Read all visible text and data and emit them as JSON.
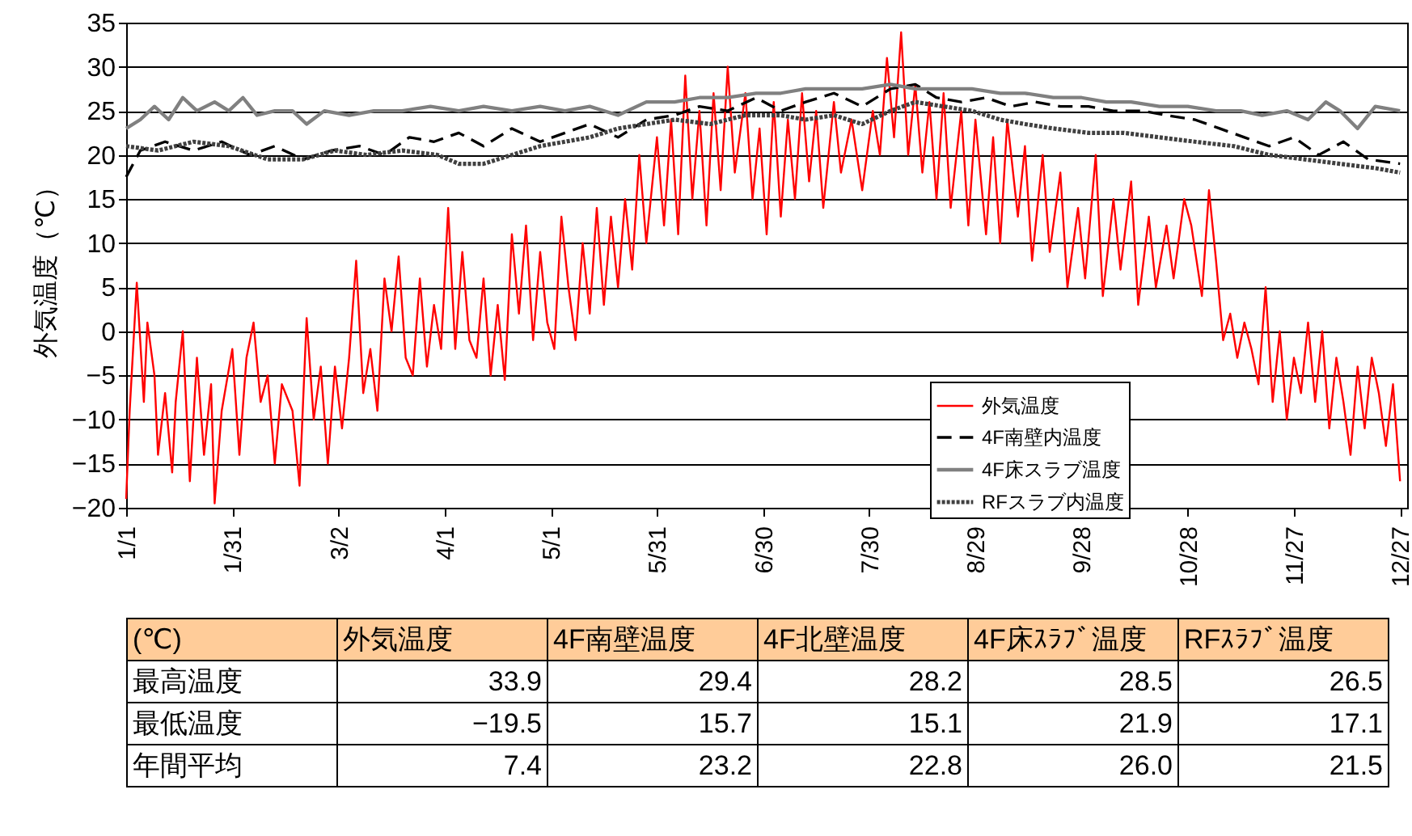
{
  "chart_data": {
    "type": "line",
    "ylabel": "外気温度（℃）",
    "ylim": [
      -20,
      35
    ],
    "yticks": [
      -20,
      -15,
      -10,
      -5,
      0,
      5,
      10,
      15,
      20,
      25,
      30,
      35
    ],
    "xlim": [
      "--01-01",
      "--12-29"
    ],
    "xticks": [
      {
        "value": "--01-01",
        "label": "1/1"
      },
      {
        "value": "--01-31",
        "label": "1/31"
      },
      {
        "value": "--03-02",
        "label": "3/2"
      },
      {
        "value": "--04-01",
        "label": "4/1"
      },
      {
        "value": "--05-01",
        "label": "5/1"
      },
      {
        "value": "--05-31",
        "label": "5/31"
      },
      {
        "value": "--06-30",
        "label": "6/30"
      },
      {
        "value": "--07-30",
        "label": "7/30"
      },
      {
        "value": "--08-29",
        "label": "8/29"
      },
      {
        "value": "--09-28",
        "label": "9/28"
      },
      {
        "value": "--10-28",
        "label": "10/28"
      },
      {
        "value": "--11-27",
        "label": "11/27"
      },
      {
        "value": "--12-27",
        "label": "12/27"
      }
    ],
    "grid": "y",
    "legend": "bottom right",
    "series": [
      {
        "name": "外気温度",
        "color": "#ff0000",
        "line_style": "solid",
        "x": [
          "--01-01",
          "--01-02",
          "--01-04",
          "--01-06",
          "--01-07",
          "--01-09",
          "--01-10",
          "--01-12",
          "--01-14",
          "--01-15",
          "--01-17",
          "--01-19",
          "--01-21",
          "--01-23",
          "--01-25",
          "--01-26",
          "--01-28",
          "--01-31",
          "--02-02",
          "--02-04",
          "--02-06",
          "--02-08",
          "--02-10",
          "--02-12",
          "--02-14",
          "--02-17",
          "--02-19",
          "--02-21",
          "--02-23",
          "--02-25",
          "--02-27",
          "--03-01",
          "--03-03",
          "--03-05",
          "--03-07",
          "--03-09",
          "--03-11",
          "--03-13",
          "--03-15",
          "--03-17",
          "--03-19",
          "--03-21",
          "--03-23",
          "--03-25",
          "--03-27",
          "--03-29",
          "--03-31",
          "--04-02",
          "--04-04",
          "--04-06",
          "--04-08",
          "--04-10",
          "--04-12",
          "--04-14",
          "--04-16",
          "--04-18",
          "--04-20",
          "--04-22",
          "--04-24",
          "--04-26",
          "--04-28",
          "--04-30",
          "--05-02",
          "--05-04",
          "--05-06",
          "--05-08",
          "--05-10",
          "--05-12",
          "--05-14",
          "--05-16",
          "--05-18",
          "--05-20",
          "--05-22",
          "--05-24",
          "--05-26",
          "--05-28",
          "--05-31",
          "--06-02",
          "--06-04",
          "--06-06",
          "--06-08",
          "--06-10",
          "--06-12",
          "--06-14",
          "--06-16",
          "--06-18",
          "--06-20",
          "--06-22",
          "--06-25",
          "--06-27",
          "--06-29",
          "--07-01",
          "--07-03",
          "--07-05",
          "--07-07",
          "--07-09",
          "--07-11",
          "--07-13",
          "--07-15",
          "--07-17",
          "--07-20",
          "--07-22",
          "--07-25",
          "--07-28",
          "--07-31",
          "--08-02",
          "--08-04",
          "--08-06",
          "--08-08",
          "--08-10",
          "--08-12",
          "--08-14",
          "--08-16",
          "--08-18",
          "--08-20",
          "--08-22",
          "--08-25",
          "--08-27",
          "--08-29",
          "--09-01",
          "--09-03",
          "--09-05",
          "--09-07",
          "--09-10",
          "--09-12",
          "--09-14",
          "--09-17",
          "--09-19",
          "--09-22",
          "--09-24",
          "--09-27",
          "--09-29",
          "--10-02",
          "--10-04",
          "--10-07",
          "--10-09",
          "--10-12",
          "--10-14",
          "--10-17",
          "--10-19",
          "--10-22",
          "--10-24",
          "--10-27",
          "--10-29",
          "--11-01",
          "--11-03",
          "--11-05",
          "--11-07",
          "--11-09",
          "--11-11",
          "--11-13",
          "--11-15",
          "--11-17",
          "--11-19",
          "--11-21",
          "--11-23",
          "--11-25",
          "--11-27",
          "--11-29",
          "--12-01",
          "--12-03",
          "--12-05",
          "--12-07",
          "--12-09",
          "--12-11",
          "--12-13",
          "--12-15",
          "--12-17",
          "--12-19",
          "--12-21",
          "--12-23",
          "--12-25",
          "--12-27"
        ],
        "values": [
          -19,
          -9,
          5.5,
          -8,
          1,
          -5,
          -14,
          -7,
          -16,
          -8,
          0,
          -17,
          -3,
          -14,
          -6,
          -19.5,
          -9,
          -2,
          -14,
          -3,
          1,
          -8,
          -5,
          -15,
          -6,
          -9,
          -17.5,
          1.5,
          -10,
          -4,
          -15,
          -4,
          -11,
          -3,
          8,
          -7,
          -2,
          -9,
          6,
          0,
          8.5,
          -3,
          -5,
          6,
          -4,
          3,
          -2,
          14,
          -2,
          9,
          -1,
          -3,
          6,
          -5,
          3,
          -5.5,
          11,
          2,
          12,
          -1,
          9,
          1,
          -2,
          13,
          5,
          -1,
          10,
          2,
          14,
          3,
          13,
          5,
          15,
          7,
          20,
          10,
          22,
          12,
          24,
          11,
          29,
          15,
          25,
          12,
          27,
          16,
          30,
          18,
          27,
          15,
          23,
          11,
          26,
          13,
          24,
          15,
          27,
          17,
          25,
          14,
          26,
          18,
          24,
          16,
          25,
          20,
          31,
          22,
          33.9,
          20,
          28,
          18,
          26,
          15,
          27,
          14,
          25,
          12,
          24,
          11,
          22,
          10,
          24,
          13,
          21,
          8,
          20,
          9,
          18,
          5,
          14,
          6,
          20,
          4,
          15,
          7,
          17,
          3,
          13,
          5,
          12,
          6,
          15,
          12,
          4,
          16,
          8,
          -1,
          2,
          -3,
          1,
          -2,
          -6,
          5,
          -8,
          0,
          -10,
          -3,
          -7,
          1,
          -8,
          0,
          -11,
          -3,
          -8,
          -14,
          -4,
          -11,
          -3,
          -7,
          -13,
          -6,
          -17
        ]
      },
      {
        "name": "4F南壁内温度",
        "color": "#000000",
        "line_style": "dashed",
        "x": [
          "--01-01",
          "--01-05",
          "--01-12",
          "--01-20",
          "--01-28",
          "--02-05",
          "--02-12",
          "--02-20",
          "--02-28",
          "--03-08",
          "--03-15",
          "--03-22",
          "--03-29",
          "--04-05",
          "--04-12",
          "--04-20",
          "--04-28",
          "--05-05",
          "--05-12",
          "--05-20",
          "--05-28",
          "--06-05",
          "--06-12",
          "--06-20",
          "--06-28",
          "--07-05",
          "--07-12",
          "--07-20",
          "--07-28",
          "--08-05",
          "--08-12",
          "--08-18",
          "--08-25",
          "--09-01",
          "--09-08",
          "--09-15",
          "--09-22",
          "--09-30",
          "--10-07",
          "--10-15",
          "--10-22",
          "--10-30",
          "--11-06",
          "--11-13",
          "--11-20",
          "--11-27",
          "--12-04",
          "--12-11",
          "--12-18",
          "--12-27"
        ],
        "values": [
          17.5,
          20.5,
          21.5,
          20.5,
          21.5,
          20,
          21,
          19.5,
          20.5,
          21,
          20,
          22,
          21.5,
          22.5,
          21,
          23,
          21.5,
          22.5,
          23.5,
          22,
          24,
          24.5,
          25.5,
          25,
          26.5,
          25,
          26,
          27,
          25.5,
          27.5,
          28,
          26.5,
          26,
          26.5,
          25.5,
          26,
          25.5,
          25.5,
          25,
          25,
          24.5,
          24,
          23,
          22,
          21,
          22,
          20,
          21.5,
          19.5,
          19
        ]
      },
      {
        "name": "4F床スラブ温度",
        "color": "#808080",
        "line_style": "solid",
        "x": [
          "--01-01",
          "--01-05",
          "--01-09",
          "--01-13",
          "--01-17",
          "--01-21",
          "--01-26",
          "--01-30",
          "--02-03",
          "--02-07",
          "--02-12",
          "--02-17",
          "--02-21",
          "--02-26",
          "--03-05",
          "--03-12",
          "--03-20",
          "--03-28",
          "--04-05",
          "--04-12",
          "--04-20",
          "--04-28",
          "--05-05",
          "--05-12",
          "--05-20",
          "--05-28",
          "--06-05",
          "--06-12",
          "--06-20",
          "--06-28",
          "--07-05",
          "--07-12",
          "--07-20",
          "--07-28",
          "--08-05",
          "--08-12",
          "--08-20",
          "--08-28",
          "--09-05",
          "--09-12",
          "--09-20",
          "--09-28",
          "--10-05",
          "--10-12",
          "--10-20",
          "--10-28",
          "--11-05",
          "--11-12",
          "--11-18",
          "--11-25",
          "--12-01",
          "--12-06",
          "--12-10",
          "--12-15",
          "--12-20",
          "--12-27"
        ],
        "values": [
          23,
          24,
          25.5,
          24,
          26.5,
          25,
          26,
          25,
          26.5,
          24.5,
          25,
          25,
          23.5,
          25,
          24.5,
          25,
          25,
          25.5,
          25,
          25.5,
          25,
          25.5,
          25,
          25.5,
          24.5,
          26,
          26,
          26.5,
          26.5,
          27,
          27,
          27.5,
          27.5,
          27.5,
          28,
          27.5,
          27.5,
          27.5,
          27,
          27,
          26.5,
          26.5,
          26,
          26,
          25.5,
          25.5,
          25,
          25,
          24.5,
          25,
          24,
          26,
          25,
          23,
          25.5,
          25
        ]
      },
      {
        "name": "RFスラブ内温度",
        "color": "#404040",
        "line_style": "dotted",
        "x": [
          "--01-01",
          "--01-10",
          "--01-20",
          "--01-30",
          "--02-10",
          "--02-20",
          "--03-01",
          "--03-10",
          "--03-20",
          "--03-30",
          "--04-05",
          "--04-12",
          "--04-20",
          "--04-28",
          "--05-05",
          "--05-12",
          "--05-20",
          "--05-28",
          "--06-05",
          "--06-15",
          "--06-25",
          "--07-05",
          "--07-12",
          "--07-20",
          "--07-28",
          "--08-05",
          "--08-12",
          "--08-20",
          "--08-28",
          "--09-05",
          "--09-12",
          "--09-20",
          "--09-30",
          "--10-10",
          "--10-20",
          "--10-30",
          "--11-10",
          "--11-20",
          "--11-30",
          "--12-10",
          "--12-20",
          "--12-27"
        ],
        "values": [
          21,
          20.5,
          21.5,
          21,
          19.5,
          19.5,
          20.5,
          20,
          20.5,
          20,
          19,
          19,
          20,
          21,
          21.5,
          22,
          23,
          23.5,
          24,
          23.5,
          24.5,
          24.5,
          24,
          24.5,
          23.5,
          25,
          26,
          25.5,
          25,
          24,
          23.5,
          23,
          22.5,
          22.5,
          22,
          21.5,
          21,
          20,
          19.5,
          19,
          18.5,
          18
        ]
      }
    ],
    "annotations": [
      "(℃)",
      "外気温度",
      "4F南壁温度",
      "4F北壁温度",
      "4F床ｽﾗﾌﾞ温度",
      "RFｽﾗﾌﾞ温度",
      "最高温度",
      "33.9",
      "29.4",
      "28.2",
      "28.5",
      "26.5",
      "最低温度",
      "−19.5",
      "15.7",
      "15.1",
      "21.9",
      "17.1",
      "年間平均",
      "7.4",
      "23.2",
      "22.8",
      "26.0",
      "21.5"
    ]
  }
}
